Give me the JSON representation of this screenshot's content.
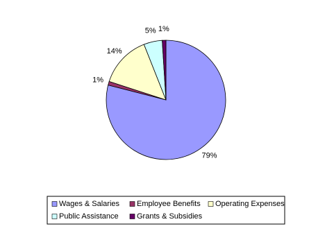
{
  "chart_data": {
    "type": "pie",
    "categories": [
      "Wages & Salaries",
      "Employee Benefits",
      "Operating Expenses",
      "Public Assistance",
      "Grants & Subsidies"
    ],
    "values": [
      79,
      1,
      14,
      5,
      1
    ],
    "value_labels": [
      "79%",
      "1%",
      "14%",
      "5%",
      "1%"
    ],
    "colors": [
      "#9999ff",
      "#993366",
      "#ffffcc",
      "#ccffff",
      "#660066"
    ],
    "legend": "bottom"
  }
}
